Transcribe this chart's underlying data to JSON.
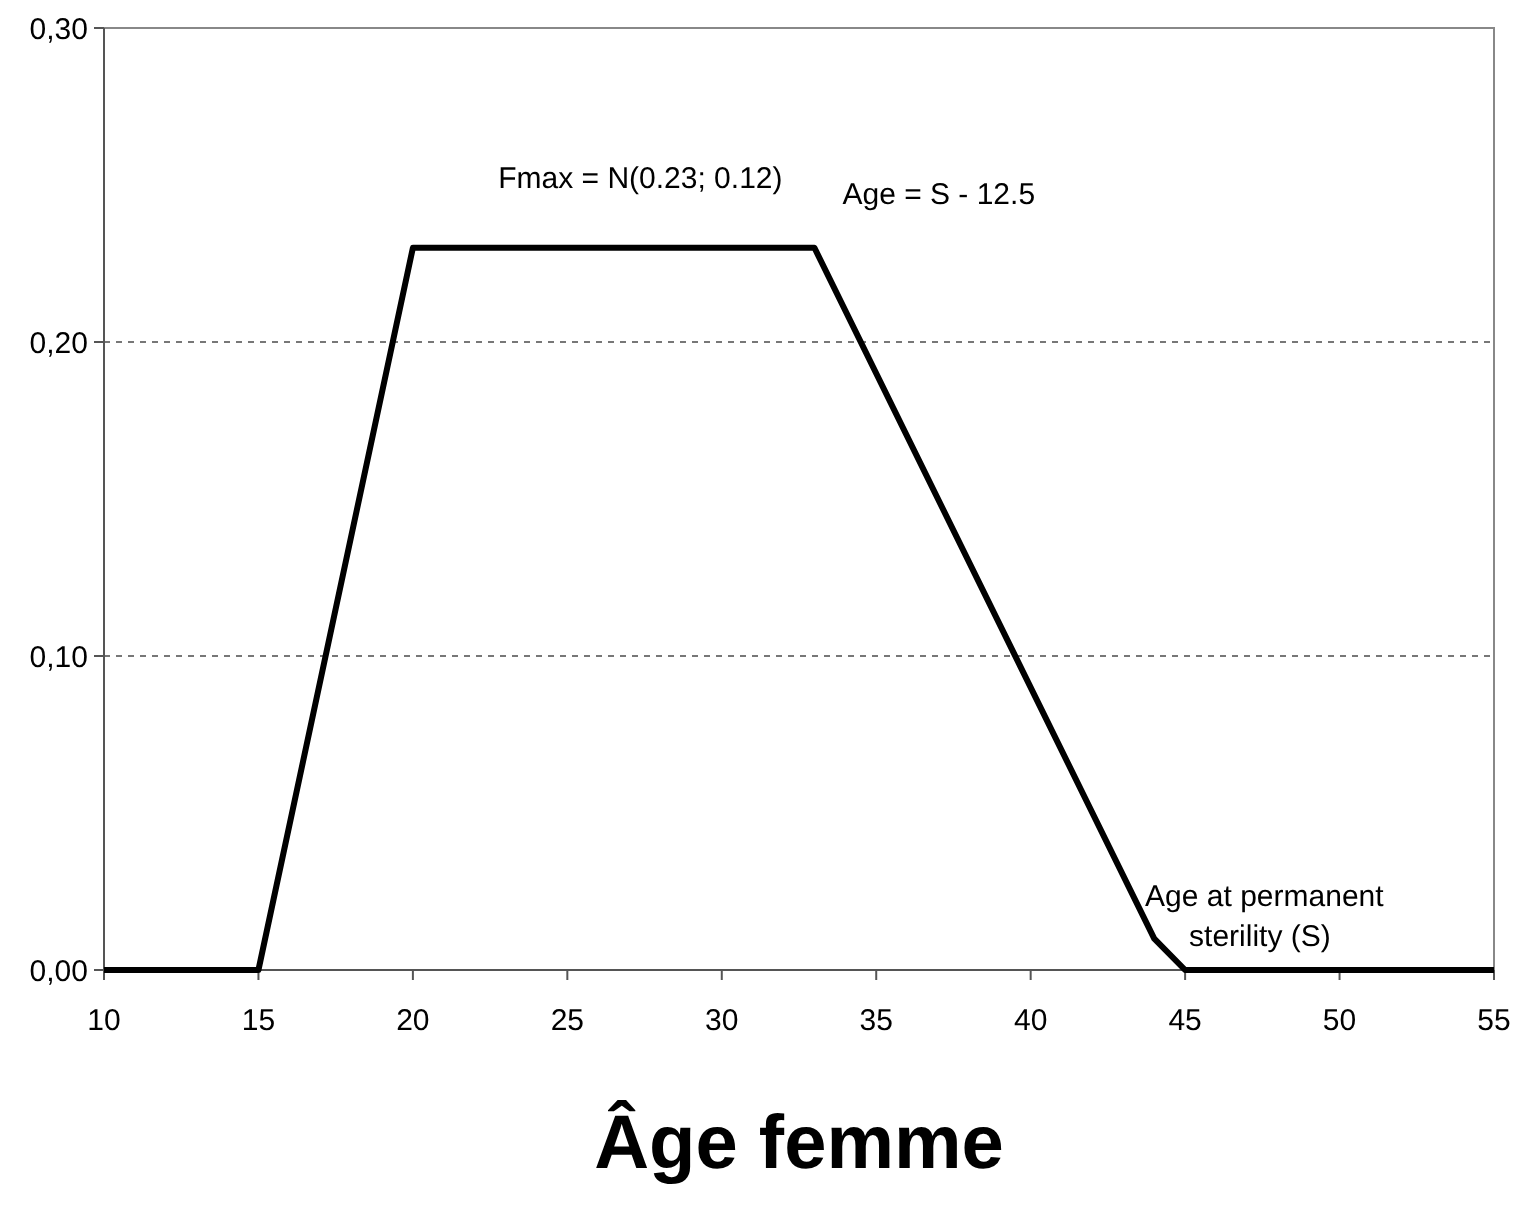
{
  "chart_data": {
    "type": "line",
    "xlabel": "Âge femme",
    "x": [
      10,
      15,
      20,
      33,
      44,
      45,
      55
    ],
    "series": [
      {
        "color": "#000000",
        "values": [
          0,
          0,
          0.23,
          0.23,
          0.01,
          0,
          0
        ]
      }
    ],
    "xlim": [
      10,
      55
    ],
    "xticks": [
      10,
      15,
      20,
      25,
      30,
      35,
      40,
      45,
      50,
      55
    ],
    "ylim": [
      0,
      0.3
    ],
    "yticks": [
      {
        "value": 0,
        "label": "0,00"
      },
      {
        "value": 0.1,
        "label": "0,10"
      },
      {
        "value": 0.2,
        "label": "0,20"
      },
      {
        "value": 0.3,
        "label": "0,30"
      }
    ],
    "grid": "y",
    "marker": "none",
    "line_style": "solid",
    "annotations": [
      {
        "text": "Fmax = N(0.23; 0.12)",
        "x": 26,
        "y": 0.23
      },
      {
        "text": "Age = S - 12.5",
        "x": 33,
        "y": 0.23
      },
      {
        "text": "Age at permanent\nsterility (S)",
        "x": 45,
        "y": 0
      }
    ]
  }
}
